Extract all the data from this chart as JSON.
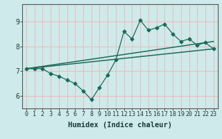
{
  "xlabel": "Humidex (Indice chaleur)",
  "ylabel": "",
  "bg_color": "#ceeaea",
  "grid_color": "#f2b8b8",
  "line_color": "#1a6b5a",
  "xlim": [
    -0.5,
    23.5
  ],
  "ylim": [
    5.5,
    9.7
  ],
  "yticks": [
    6,
    7,
    8,
    9
  ],
  "xticks": [
    0,
    1,
    2,
    3,
    4,
    5,
    6,
    7,
    8,
    9,
    10,
    11,
    12,
    13,
    14,
    15,
    16,
    17,
    18,
    19,
    20,
    21,
    22,
    23
  ],
  "curve1_x": [
    0,
    1,
    2,
    3,
    4,
    5,
    6,
    7,
    8,
    9,
    10,
    11,
    12,
    13,
    14,
    15,
    16,
    17,
    18,
    19,
    20,
    21,
    22,
    23
  ],
  "curve1_y": [
    7.1,
    7.1,
    7.1,
    6.9,
    6.8,
    6.65,
    6.5,
    6.2,
    5.85,
    6.35,
    6.85,
    7.45,
    8.6,
    8.3,
    9.05,
    8.65,
    8.75,
    8.9,
    8.5,
    8.2,
    8.3,
    8.05,
    8.15,
    7.9
  ],
  "curve2_x": [
    0,
    23
  ],
  "curve2_y": [
    7.1,
    7.9
  ],
  "curve3_x": [
    0,
    23
  ],
  "curve3_y": [
    7.1,
    8.2
  ],
  "tick_fontsize": 6.0,
  "xlabel_fontsize": 7.5
}
